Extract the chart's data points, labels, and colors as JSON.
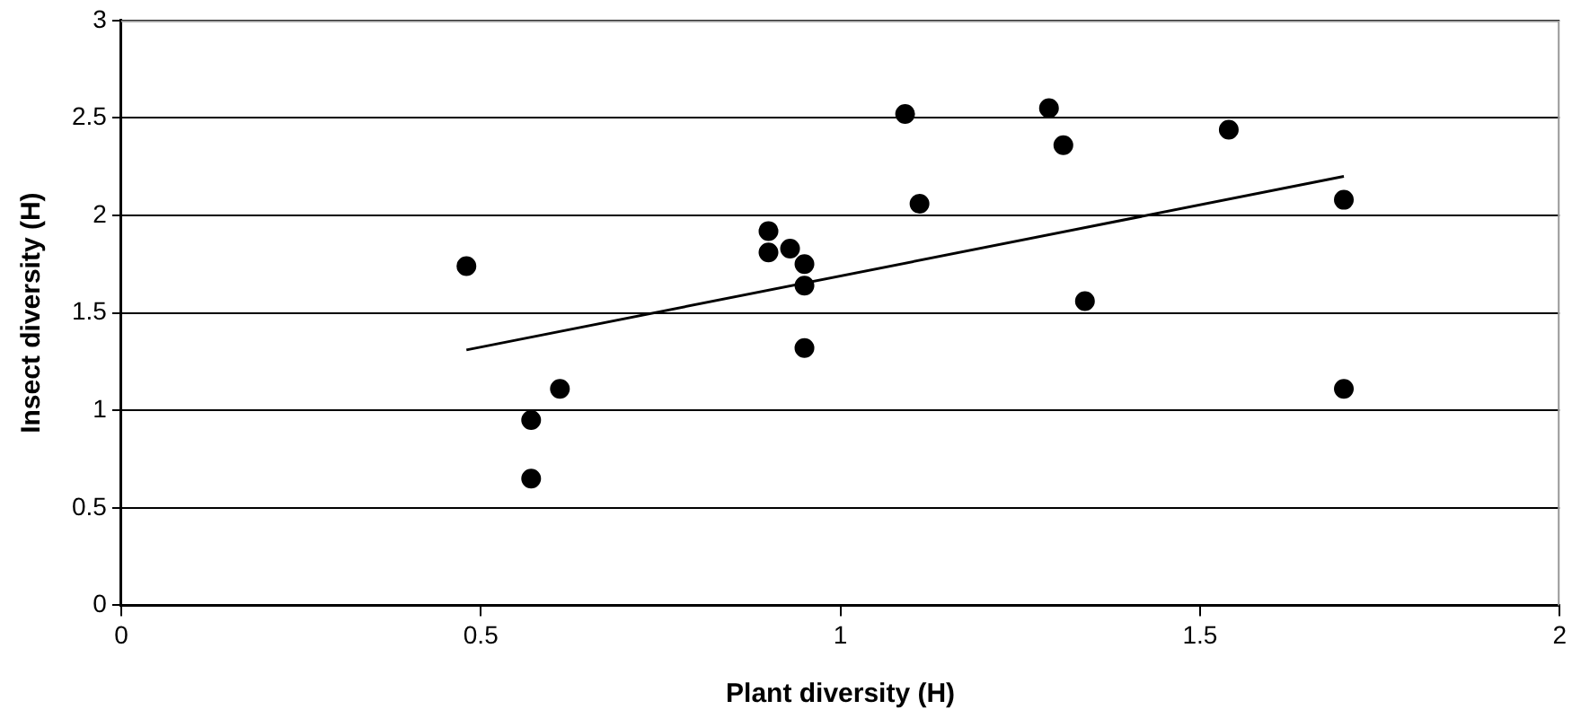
{
  "chart_data": {
    "type": "scatter",
    "xlabel": "Plant diversity (H)",
    "ylabel": "Insect diversity (H)",
    "xlim": [
      0,
      2
    ],
    "xticks": [
      0,
      0.5,
      1,
      1.5,
      2
    ],
    "ylim": [
      0,
      3
    ],
    "yticks": [
      0,
      0.5,
      1,
      1.5,
      2,
      2.5,
      3
    ],
    "grid": "y",
    "legend": false,
    "series": [
      {
        "type": "scatter",
        "marker": "circle",
        "color": "#000000",
        "x": [
          0.48,
          0.57,
          0.57,
          0.61,
          0.9,
          0.9,
          0.93,
          0.95,
          0.95,
          0.95,
          1.09,
          1.11,
          1.29,
          1.31,
          1.34,
          1.54,
          1.7,
          1.7
        ],
        "values": [
          1.74,
          0.95,
          0.65,
          1.11,
          1.92,
          1.81,
          1.83,
          1.75,
          1.64,
          1.32,
          2.52,
          2.06,
          2.55,
          2.36,
          1.56,
          2.44,
          2.08,
          1.11
        ]
      },
      {
        "type": "line",
        "marker": "none",
        "color": "#000000",
        "x": [
          0.48,
          1.7
        ],
        "values": [
          1.31,
          2.2
        ]
      }
    ]
  }
}
